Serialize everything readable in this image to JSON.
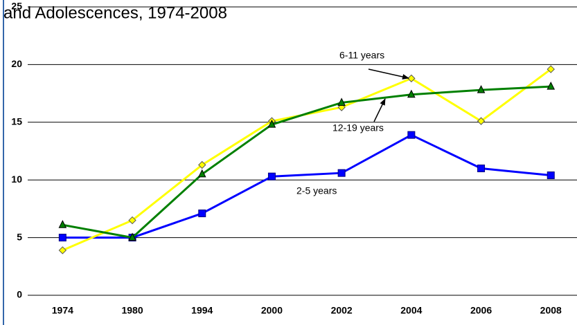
{
  "chart_data": {
    "type": "line",
    "title": "and Adolescences, 1974-2008",
    "categories": [
      "1974",
      "1980",
      "1994",
      "2000",
      "2002",
      "2004",
      "2006",
      "2008"
    ],
    "series": [
      {
        "name": "2-5 years",
        "color": "#0000ff",
        "marker": "square",
        "values": [
          5.0,
          5.0,
          7.1,
          10.3,
          10.6,
          13.9,
          11.0,
          10.4
        ]
      },
      {
        "name": "6-11 years",
        "color": "#ffff00",
        "marker": "diamond",
        "values": [
          3.9,
          6.5,
          11.3,
          15.1,
          16.3,
          18.8,
          15.1,
          19.6
        ]
      },
      {
        "name": "12-19 years",
        "color": "#008000",
        "marker": "triangle",
        "values": [
          6.1,
          5.0,
          10.5,
          14.8,
          16.7,
          17.4,
          17.8,
          18.1
        ]
      }
    ],
    "ylim": [
      0,
      25
    ],
    "yticks": [
      0,
      5,
      10,
      15,
      20,
      25
    ],
    "grid": true
  }
}
